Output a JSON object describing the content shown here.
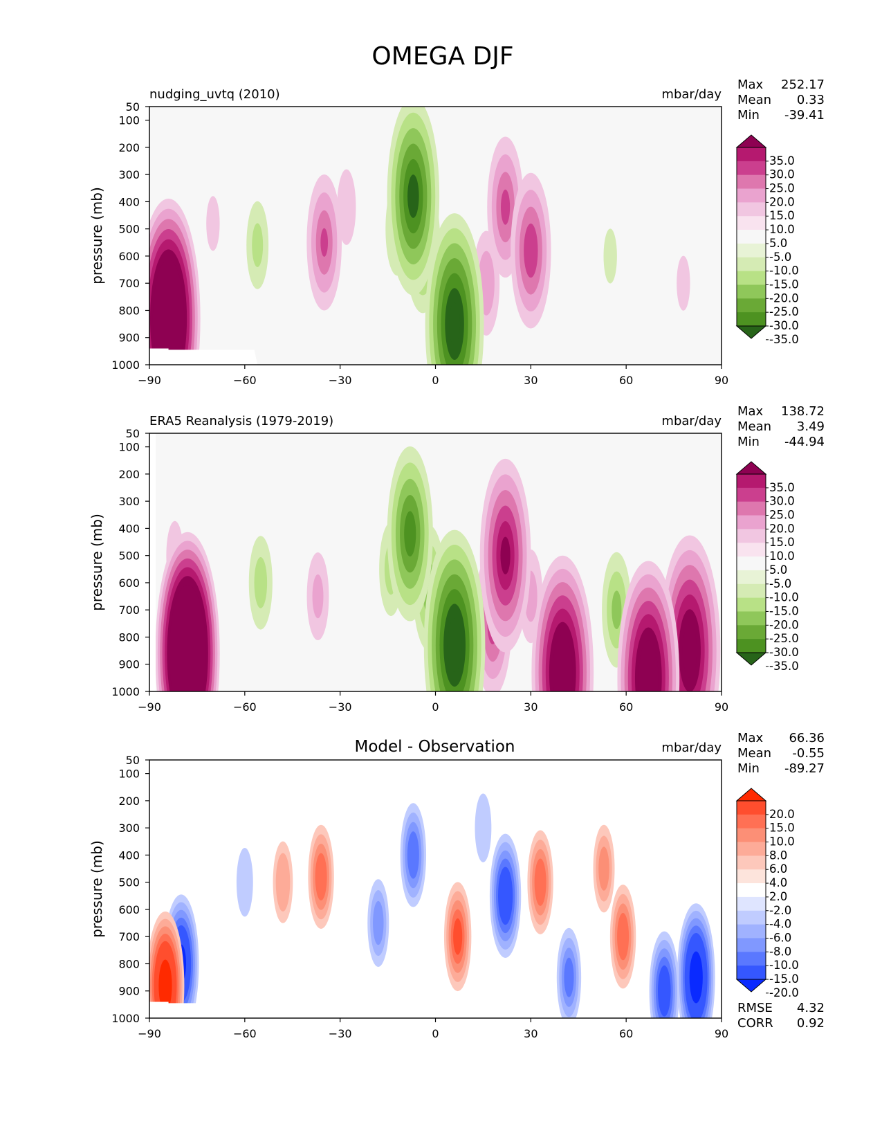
{
  "figure": {
    "title": "OMEGA DJF"
  },
  "chart_data": [
    {
      "type": "heatmap",
      "title": "nudging_uvtq (2010)",
      "units": "mbar/day",
      "xlabel": "",
      "ylabel": "pressure (mb)",
      "xlim": [
        -90,
        90
      ],
      "ylim": [
        1000,
        50
      ],
      "xticks": [
        "−90",
        "−60",
        "−30",
        "0",
        "30",
        "60",
        "90"
      ],
      "yticks": [
        "50",
        "100",
        "200",
        "300",
        "400",
        "500",
        "600",
        "700",
        "800",
        "900",
        "1000"
      ],
      "stats": {
        "max_label": "Max",
        "max": "252.17",
        "mean_label": "Mean",
        "mean": "0.33",
        "min_label": "Min",
        "min": "-39.41"
      },
      "colorbar": {
        "labels": [
          "35.0",
          "30.0",
          "25.0",
          "20.0",
          "15.0",
          "10.0",
          "5.0",
          "-5.0",
          "-10.0",
          "-15.0",
          "-20.0",
          "-25.0",
          "-30.0",
          "-35.0"
        ],
        "colors": [
          "#8e0152",
          "#b5196f",
          "#cb3f8e",
          "#de77ae",
          "#eaa3cf",
          "#f1c6e1",
          "#f9e3ef",
          "#f7f7f7",
          "#e8f3d6",
          "#d5ebb4",
          "#b8e186",
          "#8fc75a",
          "#6aa936",
          "#4d9221",
          "#276419"
        ]
      },
      "features": [
        {
          "lon": 6,
          "p": 850,
          "v": -38
        },
        {
          "lon": -7,
          "p": 380,
          "v": -33
        },
        {
          "lon": -4,
          "p": 560,
          "v": -20
        },
        {
          "lon": -12,
          "p": 500,
          "v": -12
        },
        {
          "lon": -35,
          "p": 550,
          "v": 20
        },
        {
          "lon": -28,
          "p": 420,
          "v": 9
        },
        {
          "lon": 22,
          "p": 420,
          "v": 21
        },
        {
          "lon": 30,
          "p": 580,
          "v": 24
        },
        {
          "lon": 16,
          "p": 700,
          "v": 14
        },
        {
          "lon": -56,
          "p": 560,
          "v": -11
        },
        {
          "lon": -70,
          "p": 480,
          "v": 6
        },
        {
          "lon": -84,
          "p": 830,
          "v": 60
        },
        {
          "lon": 55,
          "p": 600,
          "v": -6
        },
        {
          "lon": 78,
          "p": 700,
          "v": 6
        }
      ]
    },
    {
      "type": "heatmap",
      "title": "ERA5 Reanalysis (1979-2019)",
      "units": "mbar/day",
      "xlabel": "",
      "ylabel": "pressure (mb)",
      "xlim": [
        -90,
        90
      ],
      "ylim": [
        1000,
        50
      ],
      "xticks": [
        "−90",
        "−60",
        "−30",
        "0",
        "30",
        "60",
        "90"
      ],
      "yticks": [
        "50",
        "100",
        "200",
        "300",
        "400",
        "500",
        "600",
        "700",
        "800",
        "900",
        "1000"
      ],
      "stats": {
        "max_label": "Max",
        "max": "138.72",
        "mean_label": "Mean",
        "mean": "3.49",
        "min_label": "Min",
        "min": "-44.94"
      },
      "colorbar": {
        "labels": [
          "35.0",
          "30.0",
          "25.0",
          "20.0",
          "15.0",
          "10.0",
          "5.0",
          "-5.0",
          "-10.0",
          "-15.0",
          "-20.0",
          "-25.0",
          "-30.0",
          "-35.0"
        ],
        "colors": [
          "#8e0152",
          "#b5196f",
          "#cb3f8e",
          "#de77ae",
          "#eaa3cf",
          "#f1c6e1",
          "#f9e3ef",
          "#f7f7f7",
          "#e8f3d6",
          "#d5ebb4",
          "#b8e186",
          "#8fc75a",
          "#6aa936",
          "#4d9221",
          "#276419"
        ]
      },
      "features": [
        {
          "lon": 6,
          "p": 830,
          "v": -40
        },
        {
          "lon": -8,
          "p": 420,
          "v": -28
        },
        {
          "lon": -2,
          "p": 620,
          "v": -18
        },
        {
          "lon": -14,
          "p": 550,
          "v": -12
        },
        {
          "lon": 22,
          "p": 500,
          "v": 32
        },
        {
          "lon": 18,
          "p": 750,
          "v": 22
        },
        {
          "lon": 30,
          "p": 650,
          "v": 12
        },
        {
          "lon": -37,
          "p": 650,
          "v": 11
        },
        {
          "lon": -55,
          "p": 600,
          "v": -12
        },
        {
          "lon": -78,
          "p": 860,
          "v": 70
        },
        {
          "lon": -82,
          "p": 500,
          "v": 8
        },
        {
          "lon": 40,
          "p": 930,
          "v": 45
        },
        {
          "lon": 57,
          "p": 700,
          "v": -16
        },
        {
          "lon": 67,
          "p": 950,
          "v": 45
        },
        {
          "lon": 80,
          "p": 850,
          "v": 40
        }
      ]
    },
    {
      "type": "heatmap",
      "title": "Model - Observation",
      "units": "mbar/day",
      "xlabel": "",
      "ylabel": "pressure (mb)",
      "xlim": [
        -90,
        90
      ],
      "ylim": [
        1000,
        50
      ],
      "xticks": [
        "−90",
        "−60",
        "−30",
        "0",
        "30",
        "60",
        "90"
      ],
      "yticks": [
        "50",
        "100",
        "200",
        "300",
        "400",
        "500",
        "600",
        "700",
        "800",
        "900",
        "1000"
      ],
      "stats": {
        "max_label": "Max",
        "max": "66.36",
        "mean_label": "Mean",
        "mean": "-0.55",
        "min_label": "Min",
        "min": "-89.27"
      },
      "extra_stats": {
        "rmse_label": "RMSE",
        "rmse": "4.32",
        "corr_label": "CORR",
        "corr": "0.92"
      },
      "colorbar": {
        "labels": [
          "20.0",
          "15.0",
          "10.0",
          "8.0",
          "6.0",
          "4.0",
          "2.0",
          "-2.0",
          "-4.0",
          "-6.0",
          "-8.0",
          "-10.0",
          "-15.0",
          "-20.0"
        ],
        "colors": [
          "#ff2a00",
          "#ff4e2e",
          "#ff7054",
          "#fc8f76",
          "#fdab98",
          "#fdc8bb",
          "#fde4dc",
          "#ffffff",
          "#dfe5ff",
          "#c0ccff",
          "#a0b2ff",
          "#8098ff",
          "#5a78ff",
          "#3557ff",
          "#0a2aff"
        ]
      },
      "features": [
        {
          "lon": -48,
          "p": 500,
          "v": 5
        },
        {
          "lon": -36,
          "p": 480,
          "v": 9
        },
        {
          "lon": 7,
          "p": 700,
          "v": 10
        },
        {
          "lon": 33,
          "p": 500,
          "v": 9
        },
        {
          "lon": 53,
          "p": 450,
          "v": 6
        },
        {
          "lon": 59,
          "p": 700,
          "v": 9
        },
        {
          "lon": 22,
          "p": 550,
          "v": -13
        },
        {
          "lon": -7,
          "p": 400,
          "v": -9
        },
        {
          "lon": -18,
          "p": 650,
          "v": -6
        },
        {
          "lon": -60,
          "p": 500,
          "v": -3
        },
        {
          "lon": -80,
          "p": 800,
          "v": -16
        },
        {
          "lon": -85,
          "p": 880,
          "v": 18
        },
        {
          "lon": 42,
          "p": 850,
          "v": -8
        },
        {
          "lon": 82,
          "p": 850,
          "v": -18
        },
        {
          "lon": 72,
          "p": 900,
          "v": -12
        },
        {
          "lon": 15,
          "p": 300,
          "v": -3
        }
      ]
    }
  ]
}
